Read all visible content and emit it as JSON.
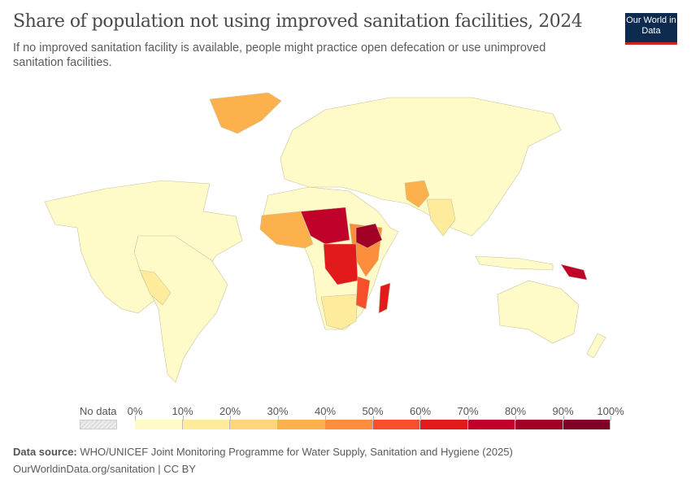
{
  "header": {
    "title": "Share of population not using improved sanitation facilities, 2024",
    "subtitle": "If no improved sanitation facility is available, people might practice open defecation or use unimproved sanitation facilities.",
    "logo": "Our World in Data"
  },
  "chart_data": {
    "type": "choropleth",
    "title": "Share of population not using improved sanitation facilities, 2024",
    "legend": {
      "no_data_label": "No data",
      "ticks": [
        "0%",
        "10%",
        "20%",
        "30%",
        "40%",
        "50%",
        "60%",
        "70%",
        "80%",
        "90%",
        "100%"
      ],
      "bins": [
        {
          "range": [
            0,
            10
          ],
          "color": "#fffbc8"
        },
        {
          "range": [
            10,
            20
          ],
          "color": "#feeb9c"
        },
        {
          "range": [
            20,
            30
          ],
          "color": "#fed57a"
        },
        {
          "range": [
            30,
            40
          ],
          "color": "#fdb14d"
        },
        {
          "range": [
            40,
            50
          ],
          "color": "#fc8d3c"
        },
        {
          "range": [
            50,
            60
          ],
          "color": "#f74f2c"
        },
        {
          "range": [
            60,
            70
          ],
          "color": "#e31a1c"
        },
        {
          "range": [
            70,
            80
          ],
          "color": "#c0022a"
        },
        {
          "range": [
            80,
            90
          ],
          "color": "#a00125"
        },
        {
          "range": [
            90,
            100
          ],
          "color": "#800026"
        }
      ]
    }
  },
  "footer": {
    "source_label": "Data source:",
    "source": "WHO/UNICEF Joint Monitoring Programme for Water Supply, Sanitation and Hygiene (2025)",
    "url": "OurWorldinData.org/sanitation | CC BY"
  }
}
